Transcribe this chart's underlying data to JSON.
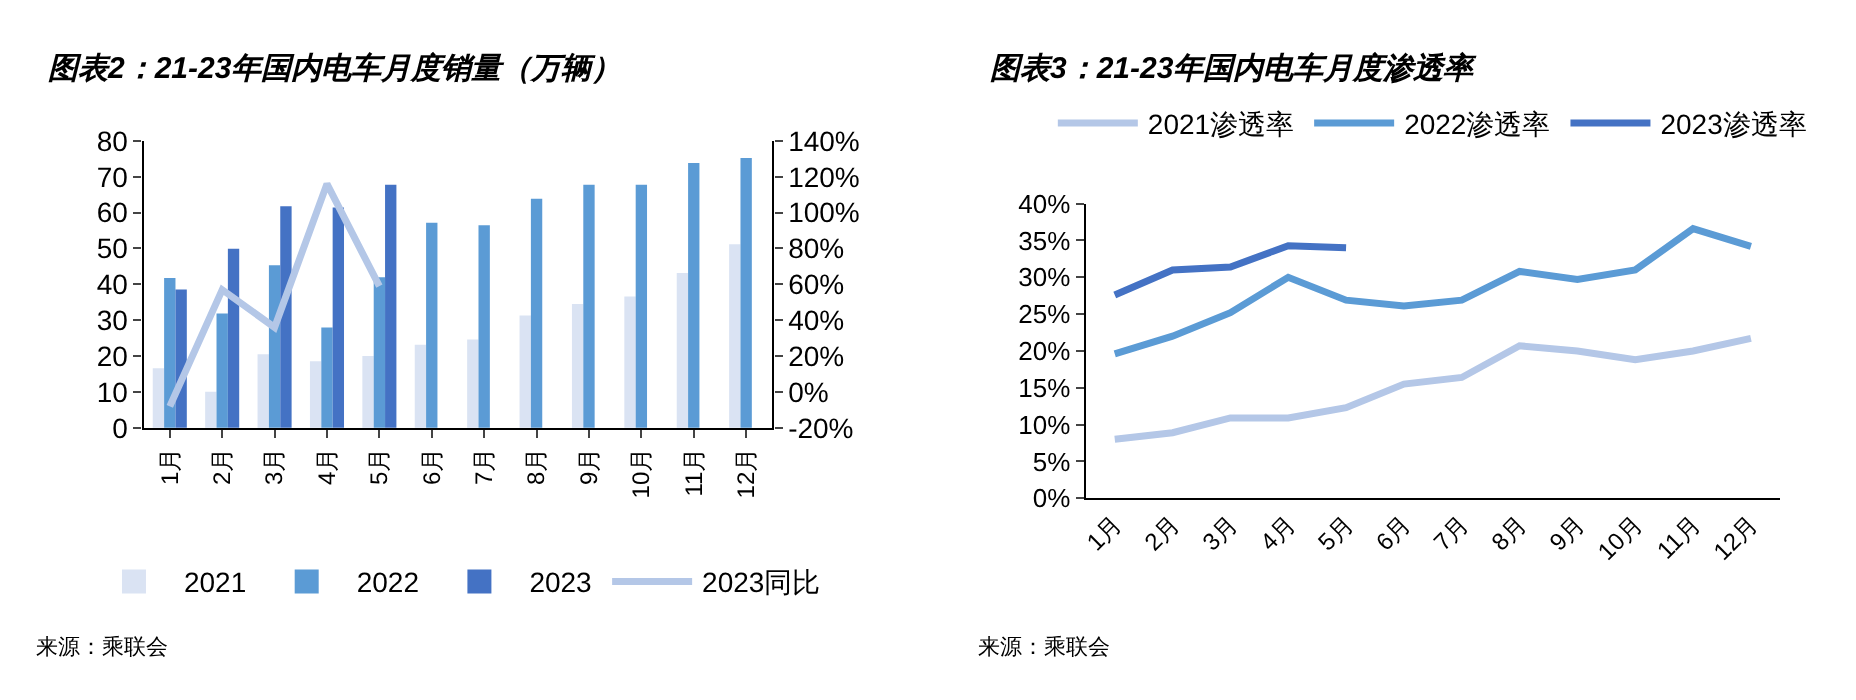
{
  "chart_data": [
    {
      "type": "bar",
      "title": "图表2：21-23年国内电车月度销量（万辆）",
      "categories": [
        "1月",
        "2月",
        "3月",
        "4月",
        "5月",
        "6月",
        "7月",
        "8月",
        "9月",
        "10月",
        "11月",
        "12月"
      ],
      "series": [
        {
          "name": "2021",
          "color": "#dae3f3",
          "values": [
            16.6,
            10.1,
            20.5,
            18.6,
            20.0,
            23.2,
            24.6,
            31.3,
            34.5,
            36.6,
            43.2,
            51.2
          ]
        },
        {
          "name": "2022",
          "color": "#5b9bd5",
          "values": [
            41.8,
            31.9,
            45.3,
            28.0,
            42.0,
            57.2,
            56.5,
            63.9,
            67.8,
            67.8,
            73.8,
            75.2
          ]
        },
        {
          "name": "2023",
          "color": "#4472c4",
          "values": [
            38.6,
            49.9,
            61.8,
            61.4,
            67.8,
            null,
            null,
            null,
            null,
            null,
            null,
            null
          ]
        },
        {
          "name": "2023同比",
          "color": "#b4c7e7",
          "type": "line",
          "axis": "y2",
          "values": [
            -8,
            57,
            36,
            116,
            59,
            null,
            null,
            null,
            null,
            null,
            null,
            null
          ]
        }
      ],
      "ylim": [
        0,
        80
      ],
      "yticks": [
        0,
        10,
        20,
        30,
        40,
        50,
        60,
        70,
        80
      ],
      "y2lim": [
        -20,
        140
      ],
      "y2ticks": [
        {
          "value": -20,
          "label": "-20%"
        },
        {
          "value": 0,
          "label": "0%"
        },
        {
          "value": 20,
          "label": "20%"
        },
        {
          "value": 40,
          "label": "40%"
        },
        {
          "value": 60,
          "label": "60%"
        },
        {
          "value": 80,
          "label": "80%"
        },
        {
          "value": 100,
          "label": "100%"
        },
        {
          "value": 120,
          "label": "120%"
        },
        {
          "value": 140,
          "label": "140%"
        }
      ],
      "legend": "bottom",
      "marker": "none",
      "line_style": "solid",
      "annotations": [
        "来源：乘联会"
      ]
    },
    {
      "type": "line",
      "title": "图表3：21-23年国内电车月度渗透率",
      "categories": [
        "1月",
        "2月",
        "3月",
        "4月",
        "5月",
        "6月",
        "7月",
        "8月",
        "9月",
        "10月",
        "11月",
        "12月"
      ],
      "series": [
        {
          "name": "2021渗透率",
          "color": "#b4c7e7",
          "values": [
            8.0,
            8.9,
            10.9,
            10.9,
            12.3,
            15.5,
            16.4,
            20.7,
            20.0,
            18.8,
            20.0,
            21.7
          ]
        },
        {
          "name": "2022渗透率",
          "color": "#5b9bd5",
          "values": [
            19.6,
            22.0,
            25.2,
            30.0,
            26.9,
            26.1,
            26.9,
            30.8,
            29.7,
            31.0,
            36.6,
            34.2
          ]
        },
        {
          "name": "2023渗透率",
          "color": "#4472c4",
          "values": [
            27.6,
            31.0,
            31.4,
            34.3,
            34.0,
            null,
            null,
            null,
            null,
            null,
            null,
            null
          ]
        }
      ],
      "ylim": [
        0,
        40
      ],
      "yticks": [
        {
          "value": 0,
          "label": "0%"
        },
        {
          "value": 5,
          "label": "5%"
        },
        {
          "value": 10,
          "label": "10%"
        },
        {
          "value": 15,
          "label": "15%"
        },
        {
          "value": 20,
          "label": "20%"
        },
        {
          "value": 25,
          "label": "25%"
        },
        {
          "value": 30,
          "label": "30%"
        },
        {
          "value": 35,
          "label": "35%"
        },
        {
          "value": 40,
          "label": "40%"
        }
      ],
      "legend": "top",
      "marker": "none",
      "line_style": "solid",
      "annotations": [
        "来源：乘联会"
      ]
    }
  ]
}
